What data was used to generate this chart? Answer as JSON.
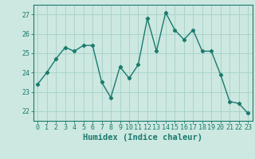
{
  "x": [
    0,
    1,
    2,
    3,
    4,
    5,
    6,
    7,
    8,
    9,
    10,
    11,
    12,
    13,
    14,
    15,
    16,
    17,
    18,
    19,
    20,
    21,
    22,
    23
  ],
  "y": [
    23.4,
    24.0,
    24.7,
    25.3,
    25.1,
    25.4,
    25.4,
    23.5,
    22.7,
    24.3,
    23.7,
    24.4,
    26.8,
    25.1,
    27.1,
    26.2,
    25.7,
    26.2,
    25.1,
    25.1,
    23.9,
    22.5,
    22.4,
    21.9
  ],
  "line_color": "#1a7a6e",
  "marker": "D",
  "marker_size": 2.2,
  "background_color": "#cce8e0",
  "grid_color": "#aad4ca",
  "xlabel": "Humidex (Indice chaleur)",
  "ylim": [
    21.5,
    27.5
  ],
  "yticks": [
    22,
    23,
    24,
    25,
    26,
    27
  ],
  "xticks": [
    0,
    1,
    2,
    3,
    4,
    5,
    6,
    7,
    8,
    9,
    10,
    11,
    12,
    13,
    14,
    15,
    16,
    17,
    18,
    19,
    20,
    21,
    22,
    23
  ],
  "tick_color": "#1a7a6e",
  "label_color": "#1a7a6e",
  "font_size": 6.0,
  "xlabel_fontsize": 7.5,
  "line_width": 1.0
}
